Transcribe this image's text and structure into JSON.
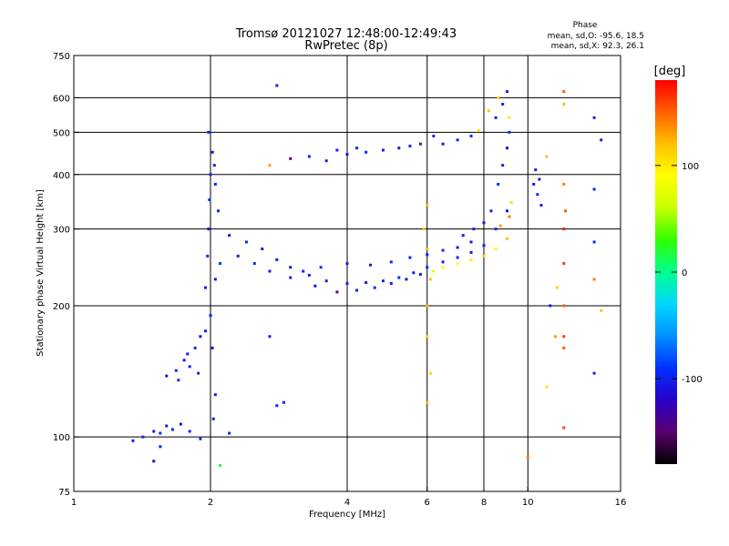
{
  "title": {
    "line1": "Tromsø 20121027 12:48:00-12:49:43",
    "line2": "RwPretec (8p)"
  },
  "phase_box": {
    "heading": "Phase",
    "line_o": "mean, sd,O: -95.6, 18.5",
    "line_x": "mean, sd,X:  92.3, 26.1"
  },
  "colorbar": {
    "unit_label": "[deg]",
    "ticks": [
      {
        "value": 100,
        "label": "100"
      },
      {
        "value": 0,
        "label": "0"
      },
      {
        "value": -100,
        "label": "-100"
      }
    ],
    "range": [
      -180,
      180
    ],
    "colormap": [
      "#000000",
      "#5a0070",
      "#2a00c8",
      "#0030ff",
      "#0090ff",
      "#00d8ff",
      "#00ff90",
      "#30ff00",
      "#c8ff00",
      "#ffff00",
      "#ffc000",
      "#ff6000",
      "#ff0000"
    ]
  },
  "chart_data": {
    "type": "scatter",
    "xlabel": "Frequency [MHz]",
    "ylabel": "Stationary phase Virtual Height [km]",
    "xscale": "log",
    "yscale": "log",
    "xlim": [
      1,
      16
    ],
    "ylim": [
      75,
      750
    ],
    "xticks": [
      {
        "value": 1,
        "label": "1"
      },
      {
        "value": 2,
        "label": "2"
      },
      {
        "value": 4,
        "label": "4"
      },
      {
        "value": 6,
        "label": "6"
      },
      {
        "value": 8,
        "label": "8"
      },
      {
        "value": 10,
        "label": "10"
      },
      {
        "value": 16,
        "label": "16"
      }
    ],
    "yticks": [
      {
        "value": 75,
        "label": "75"
      },
      {
        "value": 100,
        "label": "100"
      },
      {
        "value": 200,
        "label": "200"
      },
      {
        "value": 300,
        "label": "300"
      },
      {
        "value": 400,
        "label": "400"
      },
      {
        "value": 500,
        "label": "500"
      },
      {
        "value": 600,
        "label": "600"
      },
      {
        "value": 750,
        "label": "750"
      }
    ],
    "grid_x": [
      2,
      4,
      6,
      8,
      10
    ],
    "grid_y": [
      100,
      200,
      300,
      400,
      500,
      600
    ],
    "series": [
      {
        "color_by": "phase_deg",
        "points": [
          [
            1.35,
            98,
            -100
          ],
          [
            1.42,
            100,
            -95
          ],
          [
            1.5,
            103,
            -105
          ],
          [
            1.55,
            102,
            -90
          ],
          [
            1.6,
            106,
            -100
          ],
          [
            1.65,
            104,
            -95
          ],
          [
            1.72,
            107,
            -110
          ],
          [
            1.8,
            103,
            -100
          ],
          [
            1.5,
            88,
            -120
          ],
          [
            1.9,
            99,
            -95
          ],
          [
            1.6,
            138,
            -100
          ],
          [
            1.68,
            142,
            -95
          ],
          [
            1.75,
            150,
            -105
          ],
          [
            1.8,
            145,
            -100
          ],
          [
            1.85,
            160,
            -95
          ],
          [
            1.9,
            170,
            -110
          ],
          [
            1.95,
            175,
            -100
          ],
          [
            1.7,
            135,
            -90
          ],
          [
            1.78,
            155,
            -100
          ],
          [
            1.88,
            140,
            -95
          ],
          [
            1.95,
            220,
            -100
          ],
          [
            1.97,
            260,
            -95
          ],
          [
            1.98,
            300,
            -105
          ],
          [
            1.99,
            350,
            -100
          ],
          [
            2.0,
            400,
            -95
          ],
          [
            2.02,
            450,
            -110
          ],
          [
            2.05,
            380,
            -100
          ],
          [
            2.08,
            330,
            -95
          ],
          [
            2.0,
            190,
            -100
          ],
          [
            2.02,
            160,
            -105
          ],
          [
            1.98,
            500,
            -95
          ],
          [
            2.04,
            420,
            -100
          ],
          [
            2.1,
            250,
            -90
          ],
          [
            2.05,
            230,
            -105
          ],
          [
            2.2,
            102,
            -95
          ],
          [
            2.03,
            110,
            -100
          ],
          [
            2.05,
            125,
            -110
          ],
          [
            2.8,
            118,
            -100
          ],
          [
            2.9,
            120,
            -95
          ],
          [
            2.7,
            170,
            -100
          ],
          [
            2.2,
            290,
            -100
          ],
          [
            2.4,
            280,
            -95
          ],
          [
            2.6,
            270,
            -105
          ],
          [
            2.8,
            255,
            -100
          ],
          [
            3.0,
            245,
            -110
          ],
          [
            3.3,
            235,
            -100
          ],
          [
            3.6,
            228,
            -95
          ],
          [
            4.0,
            225,
            -100
          ],
          [
            4.4,
            226,
            -105
          ],
          [
            4.8,
            228,
            -100
          ],
          [
            5.2,
            232,
            -95
          ],
          [
            5.6,
            238,
            -100
          ],
          [
            6.0,
            245,
            -90
          ],
          [
            6.5,
            252,
            -100
          ],
          [
            7.0,
            258,
            -95
          ],
          [
            7.5,
            265,
            -105
          ],
          [
            8.0,
            275,
            -100
          ],
          [
            8.5,
            300,
            -95
          ],
          [
            9.0,
            330,
            -110
          ],
          [
            2.3,
            260,
            -100
          ],
          [
            2.5,
            250,
            -95
          ],
          [
            2.7,
            240,
            -105
          ],
          [
            3.0,
            232,
            -100
          ],
          [
            3.4,
            222,
            -110
          ],
          [
            3.8,
            215,
            -150
          ],
          [
            4.2,
            217,
            -100
          ],
          [
            4.6,
            220,
            -95
          ],
          [
            5.0,
            225,
            -100
          ],
          [
            5.4,
            230,
            -105
          ],
          [
            5.8,
            236,
            -100
          ],
          [
            3.2,
            240,
            -100
          ],
          [
            3.5,
            245,
            -95
          ],
          [
            4.0,
            250,
            -105
          ],
          [
            4.5,
            248,
            -100
          ],
          [
            5.0,
            252,
            -95
          ],
          [
            5.5,
            258,
            -100
          ],
          [
            6.0,
            262,
            -100
          ],
          [
            6.5,
            268,
            -95
          ],
          [
            7.0,
            272,
            -100
          ],
          [
            7.5,
            280,
            -105
          ],
          [
            6.2,
            240,
            70
          ],
          [
            6.5,
            245,
            80
          ],
          [
            7.0,
            250,
            90
          ],
          [
            7.5,
            255,
            100
          ],
          [
            8.0,
            260,
            110
          ],
          [
            8.5,
            270,
            95
          ],
          [
            9.0,
            285,
            120
          ],
          [
            8.7,
            305,
            130
          ],
          [
            9.1,
            320,
            140
          ],
          [
            9.2,
            345,
            60
          ],
          [
            7.2,
            290,
            -100
          ],
          [
            7.6,
            300,
            -95
          ],
          [
            8.0,
            310,
            -105
          ],
          [
            8.3,
            330,
            -100
          ],
          [
            8.6,
            380,
            -95
          ],
          [
            8.8,
            420,
            -100
          ],
          [
            9.0,
            460,
            -110
          ],
          [
            9.1,
            500,
            -95
          ],
          [
            8.5,
            540,
            -100
          ],
          [
            8.8,
            580,
            -95
          ],
          [
            8.2,
            560,
            120
          ],
          [
            8.6,
            600,
            110
          ],
          [
            9.0,
            620,
            -100
          ],
          [
            9.1,
            540,
            100
          ],
          [
            7.0,
            480,
            -100
          ],
          [
            7.5,
            490,
            -95
          ],
          [
            7.8,
            505,
            100
          ],
          [
            6.5,
            470,
            -100
          ],
          [
            6.2,
            490,
            -95
          ],
          [
            5.8,
            470,
            -100
          ],
          [
            5.5,
            465,
            -95
          ],
          [
            5.2,
            460,
            -105
          ],
          [
            4.8,
            455,
            -100
          ],
          [
            4.4,
            450,
            -95
          ],
          [
            4.0,
            445,
            -110
          ],
          [
            3.6,
            430,
            -100
          ],
          [
            3.3,
            440,
            -95
          ],
          [
            3.0,
            435,
            -150
          ],
          [
            3.8,
            455,
            -100
          ],
          [
            4.2,
            460,
            -95
          ],
          [
            2.7,
            420,
            130
          ],
          [
            2.8,
            640,
            -100
          ],
          [
            10.0,
            90,
            140
          ],
          [
            10.3,
            380,
            -100
          ],
          [
            10.5,
            360,
            -95
          ],
          [
            10.7,
            340,
            -100
          ],
          [
            10.6,
            390,
            -105
          ],
          [
            10.4,
            410,
            -100
          ],
          [
            11.0,
            440,
            120
          ],
          [
            11.2,
            200,
            -100
          ],
          [
            11.5,
            170,
            130
          ],
          [
            11.6,
            220,
            110
          ],
          [
            12.0,
            620,
            150
          ],
          [
            12.0,
            580,
            120
          ],
          [
            12.0,
            300,
            170
          ],
          [
            12.0,
            250,
            160
          ],
          [
            12.0,
            200,
            150
          ],
          [
            12.0,
            170,
            160
          ],
          [
            12.0,
            160,
            150
          ],
          [
            12.0,
            105,
            160
          ],
          [
            12.0,
            380,
            140
          ],
          [
            12.1,
            330,
            150
          ],
          [
            14.0,
            540,
            -100
          ],
          [
            14.0,
            370,
            -100
          ],
          [
            14.0,
            280,
            -95
          ],
          [
            14.0,
            230,
            140
          ],
          [
            14.0,
            140,
            -100
          ],
          [
            14.5,
            480,
            -100
          ],
          [
            14.5,
            195,
            120
          ],
          [
            11.0,
            130,
            100
          ],
          [
            6.0,
            200,
            120
          ],
          [
            6.0,
            170,
            110
          ],
          [
            6.1,
            140,
            110
          ],
          [
            6.0,
            120,
            120
          ],
          [
            5.9,
            300,
            120
          ],
          [
            6.0,
            340,
            120
          ],
          [
            6.1,
            230,
            120
          ],
          [
            6.0,
            270,
            120
          ],
          [
            2.1,
            86,
            20
          ],
          [
            1.55,
            95,
            -100
          ]
        ]
      }
    ]
  }
}
